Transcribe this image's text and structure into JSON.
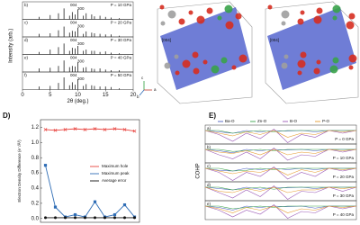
{
  "chart_data": [
    {
      "type": "stick",
      "y_label": "Intensity (arb.)",
      "x_label": "2θ (deg.)",
      "xlim": [
        0,
        20
      ],
      "xticks": [
        0,
        5,
        10,
        15,
        20
      ],
      "x": [
        3,
        5,
        6.5,
        7.5,
        8.5,
        9,
        9.5,
        10,
        11,
        11.5,
        12.5,
        13,
        14,
        15,
        16,
        17.5
      ],
      "color": "#222222",
      "panels": [
        {
          "letter": "b)",
          "label": "P = 10 GPa",
          "annotations": [
            "004",
            "300"
          ],
          "values": [
            0.2,
            0.35,
            0.5,
            0.9,
            0.3,
            0.6,
            0.4,
            0.8,
            0.3,
            0.5,
            0.4,
            0.25,
            0.3,
            0.2,
            0.15,
            0.1
          ]
        },
        {
          "letter": "c)",
          "label": "P = 20 GPa",
          "annotations": [
            "004",
            "300"
          ],
          "values": [
            0.25,
            0.3,
            0.55,
            0.85,
            0.35,
            0.5,
            0.45,
            0.75,
            0.25,
            0.45,
            0.35,
            0.3,
            0.25,
            0.2,
            0.2,
            0.1
          ]
        },
        {
          "letter": "d)",
          "label": "P = 30 GPa",
          "annotations": [
            "004",
            "300"
          ],
          "values": [
            0.2,
            0.4,
            0.6,
            0.9,
            0.3,
            0.55,
            0.5,
            0.7,
            0.3,
            0.4,
            0.3,
            0.3,
            0.2,
            0.25,
            0.15,
            0.1
          ]
        },
        {
          "letter": "e)",
          "label": "P = 40 GPa",
          "annotations": [
            "004",
            "300"
          ],
          "values": [
            0.3,
            0.35,
            0.5,
            0.95,
            0.4,
            0.5,
            0.45,
            0.8,
            0.35,
            0.4,
            0.3,
            0.25,
            0.3,
            0.2,
            0.15,
            0.15
          ]
        },
        {
          "letter": "f)",
          "label": "P = 50 GPa",
          "annotations": [
            "004",
            "300"
          ],
          "values": [
            0.25,
            0.3,
            0.55,
            1.0,
            0.35,
            0.6,
            0.4,
            0.85,
            0.3,
            0.45,
            0.35,
            0.3,
            0.25,
            0.25,
            0.2,
            0.1
          ]
        }
      ]
    },
    {
      "type": "line",
      "title": "D)",
      "y_label": "Electron Density Difference (e⁻/Å³)",
      "x": [
        1,
        2,
        3,
        4,
        5,
        6,
        7,
        8,
        9,
        10
      ],
      "xlim": [
        0.5,
        10.5
      ],
      "ylim": [
        -0.05,
        1.3
      ],
      "yticks": [
        {
          "value": 0,
          "label": "0.0"
        },
        0.2,
        0.4,
        0.6,
        0.8,
        {
          "value": 1,
          "label": "1.0"
        },
        1.2
      ],
      "series": [
        {
          "name": "Maximum hole",
          "color": "#e8413c",
          "marker": "x",
          "values": [
            1.17,
            1.16,
            1.17,
            1.18,
            1.17,
            1.18,
            1.17,
            1.18,
            1.17,
            1.15
          ]
        },
        {
          "name": "Maximum peak",
          "color": "#2f6db5",
          "marker": "square",
          "values": [
            0.7,
            0.15,
            0.02,
            0.05,
            0.02,
            0.22,
            0.02,
            0.05,
            0.18,
            0.02
          ]
        },
        {
          "name": "Average error",
          "color": "#111111",
          "marker": "circle",
          "values": [
            0.01,
            0.01,
            0.01,
            0.01,
            0.01,
            0.01,
            0.01,
            0.01,
            0.01,
            0.01
          ]
        }
      ]
    },
    {
      "type": "cohp",
      "title": "E)",
      "y_label": "COHP",
      "xlim": [
        0,
        11
      ],
      "ylim": [
        -1,
        0.4
      ],
      "x": [
        0,
        1,
        2,
        3,
        4,
        5,
        6,
        7,
        8,
        9,
        10,
        11
      ],
      "series": [
        {
          "name": "Ba-O",
          "color": "#4a5fc1"
        },
        {
          "name": "Zn-O",
          "color": "#3aa34a"
        },
        {
          "name": "B-O",
          "color": "#9b59b6"
        },
        {
          "name": "P-O",
          "color": "#e69a2e"
        }
      ],
      "panels": [
        {
          "letter": "a)",
          "label": "P = 0 GPa",
          "values": [
            [
              0,
              -0.1,
              -0.2,
              0,
              -0.1,
              0,
              -0.05,
              0,
              -0.1,
              0,
              0,
              0
            ],
            [
              0,
              0,
              -0.2,
              -0.1,
              0,
              -0.1,
              0,
              0,
              0,
              0,
              0,
              0
            ],
            [
              0,
              -0.3,
              -0.8,
              -0.2,
              -0.6,
              0.1,
              -0.9,
              -0.3,
              -0.5,
              0,
              -0.2,
              0
            ],
            [
              0,
              -0.2,
              -0.4,
              -0.1,
              -0.3,
              0,
              -0.5,
              -0.2,
              -0.3,
              0,
              -0.1,
              0
            ]
          ]
        },
        {
          "letter": "b)",
          "label": "P = 10 GPa",
          "values": [
            [
              0,
              -0.1,
              -0.25,
              0,
              -0.1,
              0,
              -0.05,
              0,
              -0.1,
              0,
              0,
              0
            ],
            [
              0,
              0,
              -0.15,
              -0.1,
              0,
              -0.1,
              0,
              0,
              0,
              0,
              0,
              0
            ],
            [
              0,
              -0.4,
              -0.7,
              -0.2,
              -0.7,
              0.1,
              -0.8,
              -0.4,
              -0.5,
              0,
              -0.2,
              0
            ],
            [
              0,
              -0.2,
              -0.3,
              -0.1,
              -0.4,
              0,
              -0.4,
              -0.2,
              -0.3,
              0,
              -0.1,
              0
            ]
          ]
        },
        {
          "letter": "c)",
          "label": "P = 20 GPa",
          "values": [
            [
              0,
              -0.15,
              -0.2,
              0,
              -0.1,
              0,
              -0.1,
              0,
              -0.1,
              0,
              0,
              0
            ],
            [
              0,
              0,
              -0.2,
              -0.15,
              0,
              -0.1,
              0,
              0,
              0,
              0,
              0,
              0
            ],
            [
              0,
              -0.3,
              -0.9,
              -0.3,
              -0.6,
              0.1,
              -0.8,
              -0.3,
              -0.6,
              0,
              -0.2,
              0
            ],
            [
              0,
              -0.2,
              -0.4,
              -0.2,
              -0.3,
              0,
              -0.5,
              -0.1,
              -0.3,
              0,
              -0.1,
              0
            ]
          ]
        },
        {
          "letter": "d)",
          "label": "P = 30 GPa",
          "values": [
            [
              0,
              -0.1,
              -0.2,
              0,
              -0.15,
              0,
              -0.05,
              0,
              -0.1,
              0,
              0,
              0
            ],
            [
              0,
              0,
              -0.2,
              -0.1,
              0,
              -0.15,
              0,
              0,
              0,
              0,
              0,
              0
            ],
            [
              0,
              -0.4,
              -0.8,
              -0.2,
              -0.7,
              0.1,
              -0.9,
              -0.3,
              -0.4,
              0,
              -0.3,
              0
            ],
            [
              0,
              -0.3,
              -0.4,
              -0.1,
              -0.3,
              0,
              -0.4,
              -0.2,
              -0.2,
              0,
              -0.1,
              0
            ]
          ]
        },
        {
          "letter": "e)",
          "label": "P = 40 GPa",
          "values": [
            [
              0,
              -0.1,
              -0.3,
              0,
              -0.1,
              0,
              -0.05,
              0,
              -0.15,
              0,
              0,
              0
            ],
            [
              0,
              0,
              -0.2,
              -0.1,
              0,
              -0.1,
              0,
              0,
              0,
              0,
              0,
              0
            ],
            [
              0,
              -0.3,
              -0.8,
              -0.3,
              -0.6,
              0.1,
              -0.9,
              -0.4,
              -0.5,
              0,
              -0.2,
              0
            ],
            [
              0,
              -0.2,
              -0.5,
              -0.1,
              -0.3,
              0,
              -0.5,
              -0.2,
              -0.3,
              0,
              -0.1,
              0
            ]
          ]
        }
      ]
    }
  ],
  "structures": {
    "labels": [
      "[004]",
      "[004]"
    ],
    "axes": [
      "a",
      "b",
      "c"
    ]
  }
}
